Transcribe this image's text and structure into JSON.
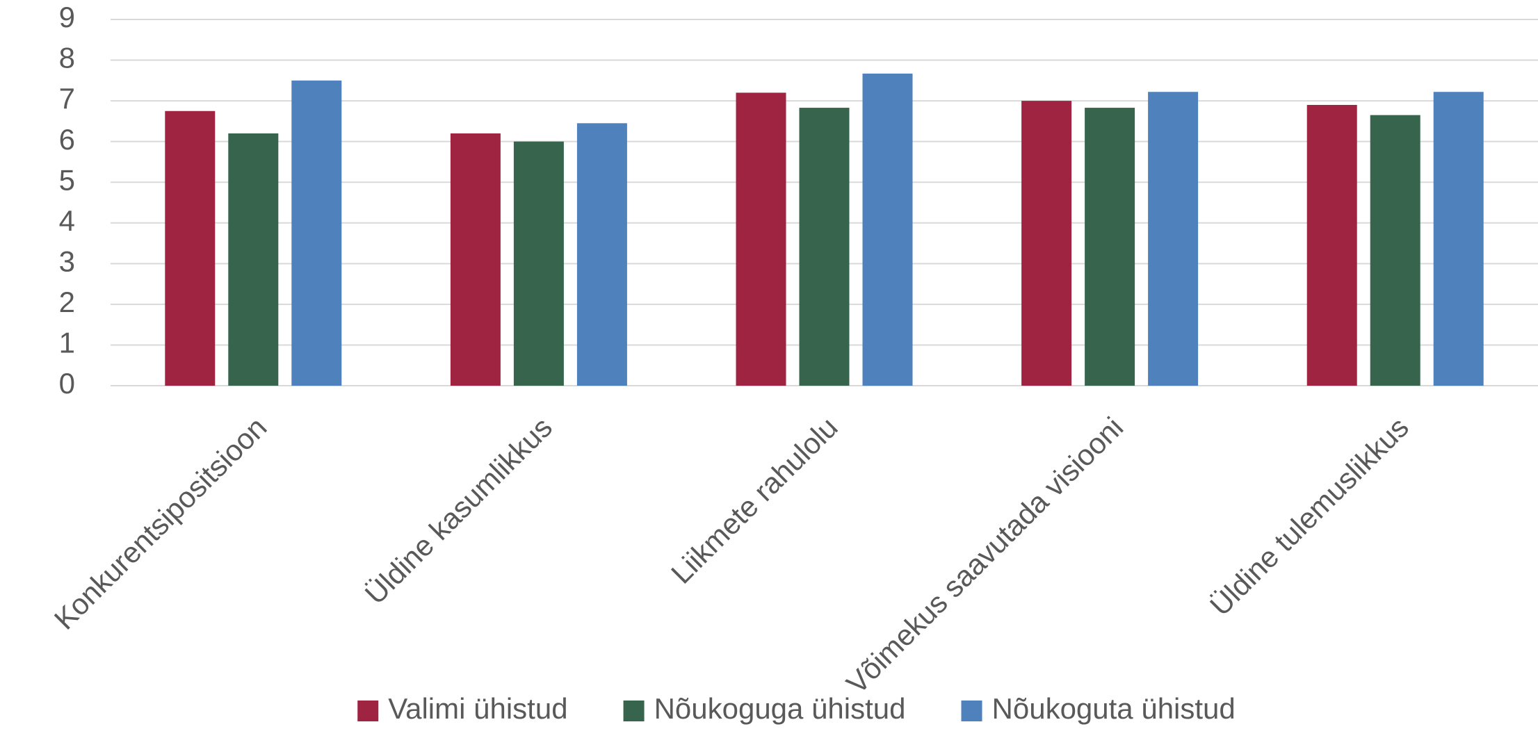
{
  "chart_data": {
    "type": "bar",
    "categories": [
      "Konkurentsipositsioon",
      "Üldine kasumlikkus",
      "Liikmete rahulolu",
      "Võimekus saavutada visiooni",
      "Üldine tulemuslikkus"
    ],
    "series": [
      {
        "name": "Valimi ühistud",
        "color": "#9e2441",
        "values": [
          6.75,
          6.2,
          7.2,
          7.0,
          6.9
        ]
      },
      {
        "name": "Nõukoguga ühistud",
        "color": "#36644c",
        "values": [
          6.2,
          6.0,
          6.83,
          6.83,
          6.65
        ]
      },
      {
        "name": "Nõukoguta ühistud",
        "color": "#4f81bd",
        "values": [
          7.5,
          6.45,
          7.67,
          7.22,
          7.22
        ]
      }
    ],
    "ylim": [
      0,
      9
    ],
    "yticks": [
      0,
      1,
      2,
      3,
      4,
      5,
      6,
      7,
      8,
      9
    ],
    "grid": true,
    "legend": "bottom"
  }
}
